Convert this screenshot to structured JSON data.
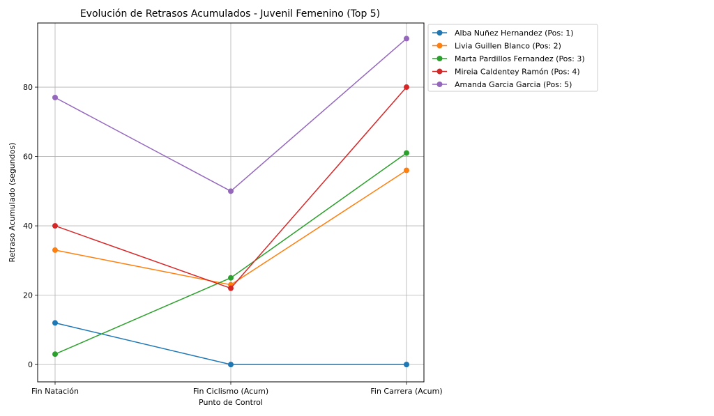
{
  "chart_data": {
    "type": "line",
    "title": "Evolución de Retrasos Acumulados - Juvenil Femenino (Top 5)",
    "xlabel": "Punto de Control",
    "ylabel": "Retraso Acumulado (segundos)",
    "categories": [
      "Fin Natación",
      "Fin Ciclismo (Acum)",
      "Fin Carrera (Acum)"
    ],
    "ylim": [
      -5,
      98.5
    ],
    "yticks": [
      0,
      20,
      40,
      60,
      80
    ],
    "grid": true,
    "legend_position": "outside-top-right",
    "series": [
      {
        "name": "Alba Nuñez Hernandez (Pos: 1)",
        "color": "#1f77b4",
        "values": [
          12,
          0,
          0
        ]
      },
      {
        "name": "Livia Guillen Blanco (Pos: 2)",
        "color": "#ff7f0e",
        "values": [
          33,
          23,
          56
        ]
      },
      {
        "name": "Marta Pardillos Fernandez (Pos: 3)",
        "color": "#2ca02c",
        "values": [
          3,
          25,
          61
        ]
      },
      {
        "name": "Mireia Caldentey Ramón (Pos: 4)",
        "color": "#d62728",
        "values": [
          40,
          22,
          80
        ]
      },
      {
        "name": "Amanda Garcia Garcia (Pos: 5)",
        "color": "#9467bd",
        "values": [
          77,
          50,
          94
        ]
      }
    ]
  }
}
